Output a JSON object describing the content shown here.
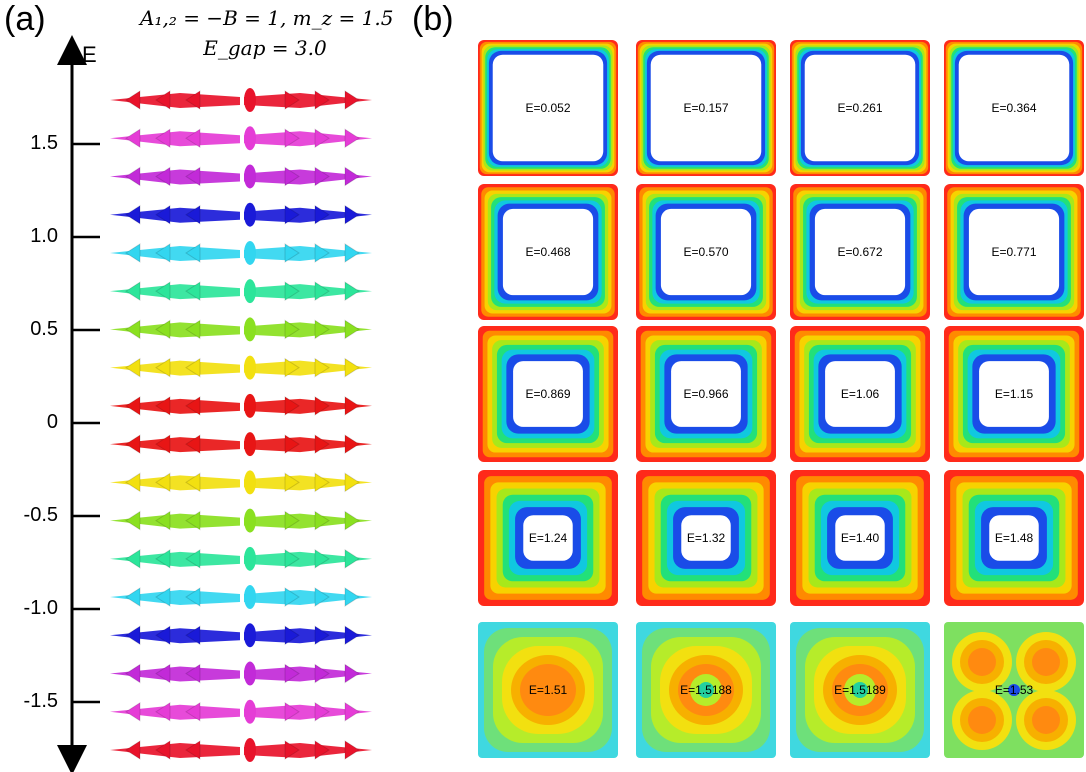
{
  "panel_a": {
    "label": "(a)",
    "equation_line1": "A₁,₂ = −B = 1, m_z = 1.5",
    "equation_line2": "E_gap = 3.0",
    "axis_label": "E",
    "ticks": [
      {
        "label": "1.5",
        "value": 1.5
      },
      {
        "label": "1.0",
        "value": 1.0
      },
      {
        "label": "0.5",
        "value": 0.5
      },
      {
        "label": "0",
        "value": 0
      },
      {
        "label": "-0.5",
        "value": -0.5
      },
      {
        "label": "-1.0",
        "value": -1.0
      },
      {
        "label": "-1.5",
        "value": -1.5
      }
    ],
    "layer_colors": [
      "#e8132b",
      "#e53cd6",
      "#c22ad8",
      "#1a1ad8",
      "#32d6f0",
      "#2ce59a",
      "#8ae020",
      "#f2e010",
      "#e81515",
      "#e81515",
      "#f2e010",
      "#8ae020",
      "#2ce59a",
      "#32d6f0",
      "#1a1ad8",
      "#c22ad8",
      "#e53cd6",
      "#e8132b"
    ]
  },
  "panel_b": {
    "label": "(b)",
    "tiles": [
      {
        "text": "E=0.052",
        "kind": "square"
      },
      {
        "text": "E=0.157",
        "kind": "square"
      },
      {
        "text": "E=0.261",
        "kind": "square"
      },
      {
        "text": "E=0.364",
        "kind": "square"
      },
      {
        "text": "E=0.468",
        "kind": "square"
      },
      {
        "text": "E=0.570",
        "kind": "square"
      },
      {
        "text": "E=0.672",
        "kind": "square"
      },
      {
        "text": "E=0.771",
        "kind": "square"
      },
      {
        "text": "E=0.869",
        "kind": "square"
      },
      {
        "text": "E=0.966",
        "kind": "square"
      },
      {
        "text": "E=1.06",
        "kind": "square"
      },
      {
        "text": "E=1.15",
        "kind": "square"
      },
      {
        "text": "E=1.24",
        "kind": "square"
      },
      {
        "text": "E=1.32",
        "kind": "square"
      },
      {
        "text": "E=1.40",
        "kind": "square"
      },
      {
        "text": "E=1.48",
        "kind": "square"
      },
      {
        "text": "E=1.51",
        "kind": "bulk"
      },
      {
        "text": "E=1.5188",
        "kind": "bulk-dot"
      },
      {
        "text": "E=1.5189",
        "kind": "bulk-dot"
      },
      {
        "text": "E=1.53",
        "kind": "quad"
      }
    ]
  }
}
